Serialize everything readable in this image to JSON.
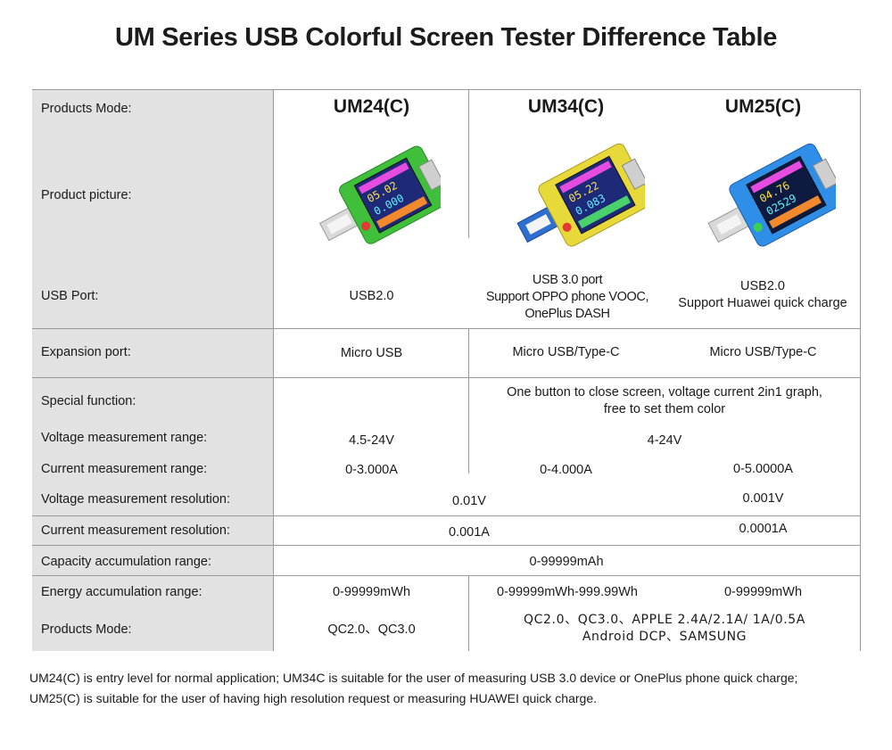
{
  "title": "UM Series USB Colorful Screen Tester Difference Table",
  "models": [
    "UM24(C)",
    "UM34(C)",
    "UM25(C)"
  ],
  "rows": {
    "products_mode": "Products Mode:",
    "product_picture": "Product picture:",
    "usb_port": {
      "label": "USB Port:",
      "um24": "USB2.0",
      "um34_line1": "USB 3.0 port",
      "um34_line2": "Support OPPO phone VOOC,",
      "um34_line3": "OnePlus DASH",
      "um25_line1": "USB2.0",
      "um25_line2": "Support Huawei quick charge"
    },
    "expansion_port": {
      "label": "Expansion port:",
      "um24": "Micro USB",
      "um34": "Micro USB/Type-C",
      "um25": "Micro USB/Type-C"
    },
    "special_function": {
      "label": "Special function:",
      "shared_line1": "One button to close screen, voltage current 2in1 graph,",
      "shared_line2": "free to set them color"
    },
    "voltage_range": {
      "label": "Voltage measurement range:",
      "um24": "4.5-24V",
      "shared": "4-24V"
    },
    "current_range": {
      "label": "Current measurement range:",
      "um24": "0-3.000A",
      "um34": "0-4.000A",
      "um25": "0-5.0000A"
    },
    "voltage_resolution": {
      "label": "Voltage measurement resolution:",
      "shared": "0.01V",
      "um25": "0.001V"
    },
    "current_resolution": {
      "label": "Current measurement resolution:",
      "shared": "0.001A",
      "um25": "0.0001A"
    },
    "capacity_range": {
      "label": "Capacity accumulation range:",
      "all": "0-99999mAh"
    },
    "energy_range": {
      "label": "Energy accumulation range:",
      "um24": "0-99999mWh",
      "um34": "0-99999mWh-999.99Wh",
      "um25": "0-99999mWh"
    },
    "products_mode_2": {
      "label": "Products Mode:",
      "um24": "QC2.0、QC3.0",
      "shared_line1": "QC2.0、QC3.0、APPLE 2.4A/2.1A/ 1A/0.5A",
      "shared_line2": "Android DCP、SAMSUNG"
    }
  },
  "devices": [
    {
      "name": "UM24(C)",
      "body_color": "#3fbf3a",
      "screen_value1": "05.027V",
      "screen_value2": "0.000A"
    },
    {
      "name": "UM34(C)",
      "body_color": "#e8d93a",
      "screen_value1": "05.227V",
      "screen_value2": "0.0834A"
    },
    {
      "name": "UM25(C)",
      "body_color": "#2f8fe8",
      "screen_value1": "04.761V",
      "screen_value2": "02529A"
    }
  ],
  "footnote": {
    "line1": "UM24(C) is  entry level for normal application; UM34C is suitable for the user of measuring USB 3.0 device or OnePlus phone quick charge;",
    "line2": "UM25(C) is suitable for the user of having high resolution request or measuring HUAWEI quick charge."
  }
}
